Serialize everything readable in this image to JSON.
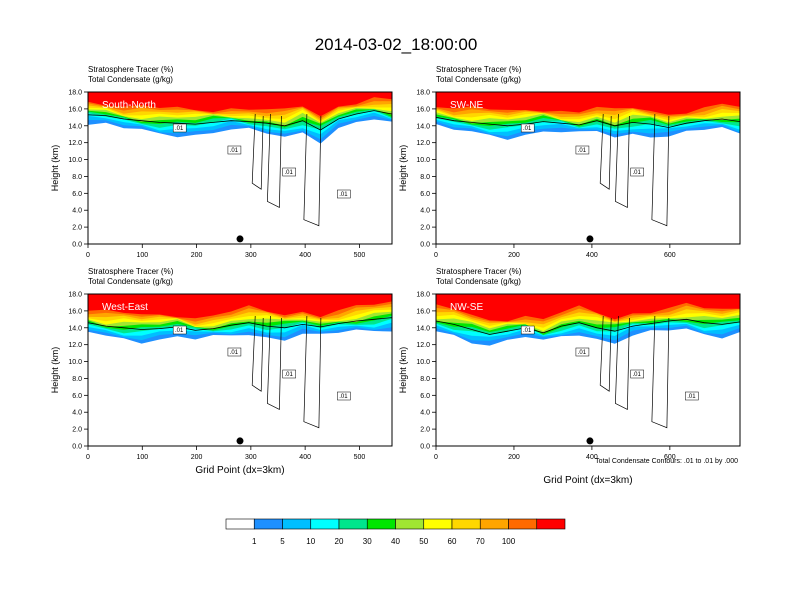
{
  "title": "2014-03-02_18:00:00",
  "panel_label_line1": "Stratosphere Tracer   (%)",
  "panel_label_line2": "Total Condensate   (g/kg)",
  "ylabel": "Height (km)",
  "xlabel": "Grid Point (dx=3km)",
  "contour_note": "Total Condensate Contours: .01 to .01 by .000",
  "colors": [
    "#ffffff",
    "#1e90ff",
    "#00bfff",
    "#00ffff",
    "#00e68c",
    "#00e600",
    "#a0e632",
    "#ffff00",
    "#ffd700",
    "#ffa500",
    "#ff6a00",
    "#ff0000"
  ],
  "colorbar_ticks": [
    "1",
    "5",
    "10",
    "20",
    "30",
    "40",
    "50",
    "60",
    "70",
    "100"
  ],
  "chart_data": [
    {
      "type": "heatmap",
      "name": "South-North",
      "xlim": [
        0,
        560
      ],
      "xticks": [
        "0",
        "100",
        "200",
        "300",
        "400",
        "500"
      ],
      "ylim": [
        0,
        18
      ],
      "yticks": [
        "0.0",
        "2.0",
        "4.0",
        "6.0",
        "8.0",
        "10.0",
        "12.0",
        "14.0",
        "16.0",
        "18.0"
      ],
      "contour_labels": [
        ".01",
        ".01",
        ".01",
        ".01"
      ],
      "marker_x": 280,
      "tropopause_km": [
        15.3,
        15.2,
        14.8,
        14.6,
        14.4,
        14.3,
        14.2,
        14.4,
        14.6,
        14.5,
        14.3,
        14.0,
        14.6,
        13.5,
        14.8,
        15.4,
        15.8,
        15.4
      ]
    },
    {
      "type": "heatmap",
      "name": "SW-NE",
      "xlim": [
        0,
        780
      ],
      "xticks": [
        "0",
        "200",
        "400",
        "600"
      ],
      "ylim": [
        0,
        18
      ],
      "yticks": [
        "0.0",
        "2.0",
        "4.0",
        "6.0",
        "8.0",
        "10.0",
        "12.0",
        "14.0",
        "16.0",
        "18.0"
      ],
      "contour_labels": [
        ".01",
        ".01",
        ".01"
      ],
      "marker_x": 395,
      "tropopause_km": [
        15.0,
        14.6,
        14.4,
        14.2,
        14.0,
        14.2,
        14.5,
        14.3,
        14.1,
        14.6,
        14.0,
        14.4,
        14.2,
        13.8,
        14.3,
        14.6,
        14.8,
        14.5
      ]
    },
    {
      "type": "heatmap",
      "name": "West-East",
      "xlim": [
        0,
        560
      ],
      "xticks": [
        "0",
        "100",
        "200",
        "300",
        "400",
        "500"
      ],
      "ylim": [
        0,
        18
      ],
      "yticks": [
        "0.0",
        "2.0",
        "4.0",
        "6.0",
        "8.0",
        "10.0",
        "12.0",
        "14.0",
        "16.0",
        "18.0"
      ],
      "contour_labels": [
        ".01",
        ".01",
        ".01",
        ".01"
      ],
      "marker_x": 280,
      "tropopause_km": [
        14.6,
        14.2,
        14.0,
        13.8,
        13.9,
        14.1,
        13.7,
        13.9,
        14.3,
        14.6,
        14.2,
        14.0,
        14.4,
        14.1,
        14.5,
        14.8,
        15.0,
        15.2
      ]
    },
    {
      "type": "heatmap",
      "name": "NW-SE",
      "xlim": [
        0,
        780
      ],
      "xticks": [
        "0",
        "200",
        "400",
        "600"
      ],
      "ylim": [
        0,
        18
      ],
      "yticks": [
        "0.0",
        "2.0",
        "4.0",
        "6.0",
        "8.0",
        "10.0",
        "12.0",
        "14.0",
        "16.0",
        "18.0"
      ],
      "contour_labels": [
        ".01",
        ".01",
        ".01",
        ".01"
      ],
      "marker_x": 395,
      "tropopause_km": [
        14.8,
        14.4,
        13.8,
        13.2,
        13.6,
        14.0,
        13.4,
        14.2,
        14.6,
        14.0,
        13.6,
        14.2,
        14.5,
        14.8,
        15.0,
        14.6,
        14.4,
        14.7
      ]
    }
  ]
}
